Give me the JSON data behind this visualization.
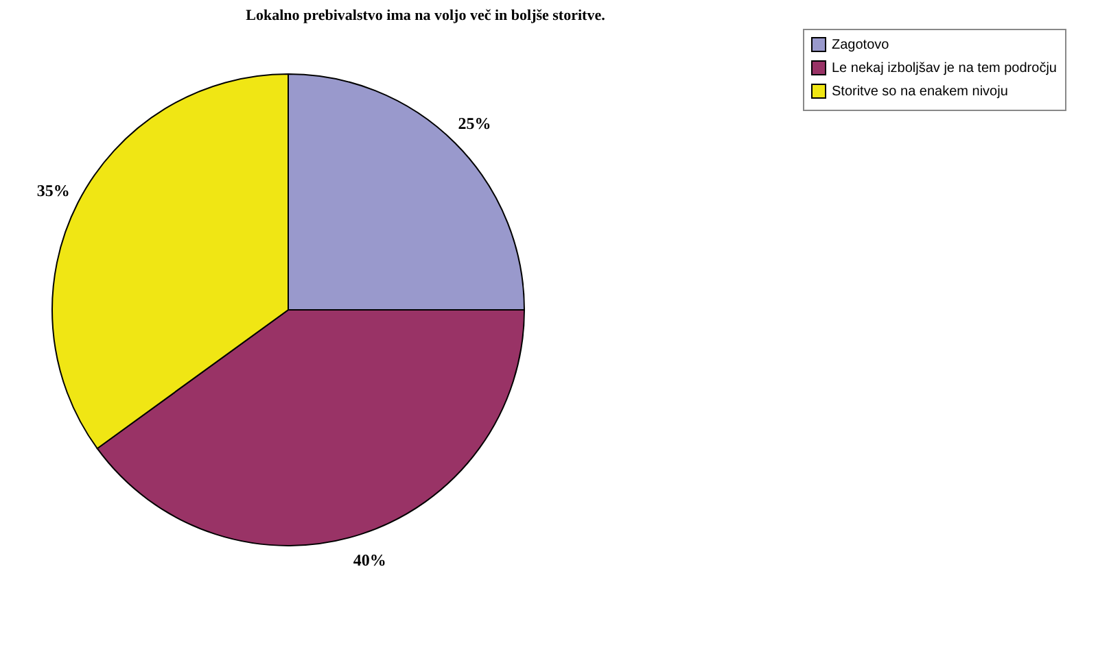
{
  "chart_data": {
    "type": "pie",
    "title": "Lokalno prebivalstvo ima na voljo več in boljše storitve.",
    "categories": [
      "Zagotovo",
      "Le nekaj izboljšav je na tem področju",
      "Storitve so na enakem nivoju"
    ],
    "values": [
      25,
      40,
      35
    ],
    "colors": [
      "#9999cc",
      "#993366",
      "#f0e614"
    ],
    "value_labels": [
      "25%",
      "40%",
      "35%"
    ],
    "legend": "right"
  }
}
